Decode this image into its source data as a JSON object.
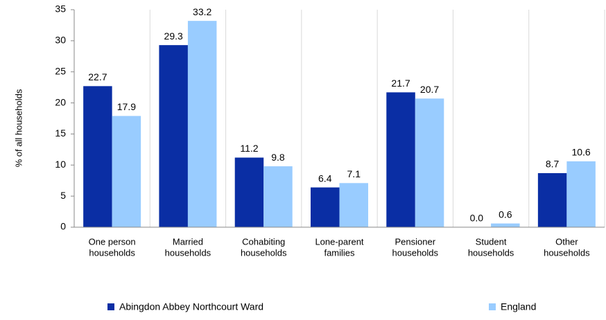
{
  "chart_data": {
    "type": "bar",
    "y_label": "% of all households",
    "categories": [
      [
        "One person",
        "households"
      ],
      [
        "Married",
        "households"
      ],
      [
        "Cohabiting",
        "households"
      ],
      [
        "Lone-parent",
        "families"
      ],
      [
        "Pensioner",
        "households"
      ],
      [
        "Student",
        "households"
      ],
      [
        "Other",
        "households"
      ]
    ],
    "series": [
      {
        "name": "Abingdon Abbey Northcourt Ward",
        "color": "#0a2ea4",
        "values": [
          22.7,
          29.3,
          11.2,
          6.4,
          21.7,
          0,
          8.7
        ],
        "value_labels": [
          "22.7",
          "29.3",
          "11.2",
          "6.4",
          "21.7",
          "0.0",
          "8.7"
        ]
      },
      {
        "name": "England",
        "color": "#99ccff",
        "values": [
          17.9,
          33.2,
          9.8,
          7.1,
          20.7,
          0.6,
          10.6
        ],
        "value_labels": [
          "17.9",
          "33.2",
          "9.8",
          "7.1",
          "20.7",
          "0.6",
          "10.6"
        ]
      }
    ],
    "ylim": [
      0,
      35
    ],
    "yticks": [
      0,
      5,
      10,
      15,
      20,
      25,
      30,
      35
    ],
    "grid": "vertical"
  }
}
